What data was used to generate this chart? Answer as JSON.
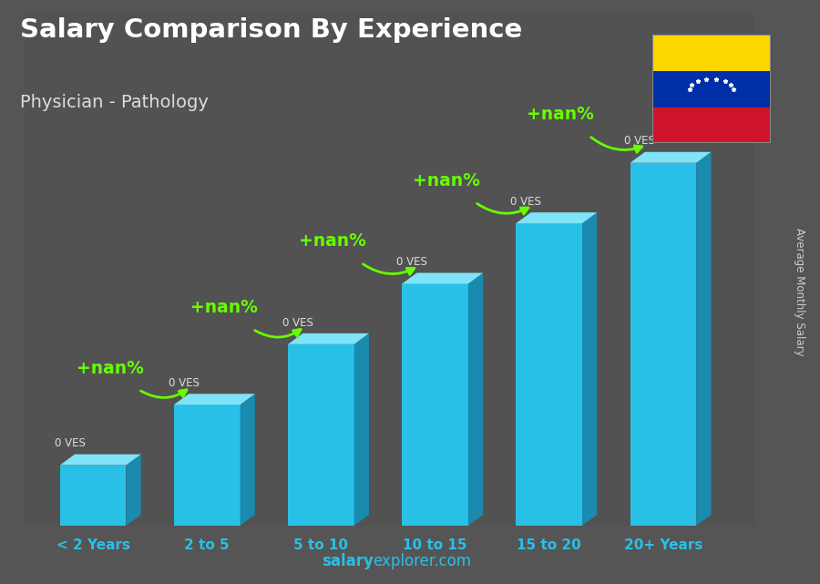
{
  "title": "Salary Comparison By Experience",
  "subtitle": "Physician - Pathology",
  "ylabel": "Average Monthly Salary",
  "categories": [
    "< 2 Years",
    "2 to 5",
    "5 to 10",
    "10 to 15",
    "15 to 20",
    "20+ Years"
  ],
  "values": [
    1,
    2,
    3,
    4,
    5,
    6
  ],
  "bar_color_face": "#29C0E8",
  "bar_color_right": "#1A8AAF",
  "bar_color_top": "#7FE4F7",
  "bg_top_color": "#6b6b6b",
  "bg_bottom_color": "#3a3a3a",
  "title_color": "#ffffff",
  "subtitle_color": "#dddddd",
  "label_color": "#ffffff",
  "ves_label_color": "#dddddd",
  "annotation_color": "#66FF00",
  "value_labels": [
    "0 VES",
    "0 VES",
    "0 VES",
    "0 VES",
    "0 VES",
    "0 VES"
  ],
  "pct_labels": [
    "+nan%",
    "+nan%",
    "+nan%",
    "+nan%",
    "+nan%"
  ],
  "watermark_bold": "salary",
  "watermark_normal": "explorer.com",
  "watermark_color": "#29C0E8",
  "flag_yellow": "#FFD700",
  "flag_blue": "#002FA7",
  "flag_red": "#CF142B",
  "flag_star_color": "#ffffff",
  "xlim": [
    -0.6,
    5.8
  ],
  "ylim": [
    0,
    8.5
  ],
  "bar_width": 0.58,
  "depth_x": 0.13,
  "depth_y": 0.18
}
